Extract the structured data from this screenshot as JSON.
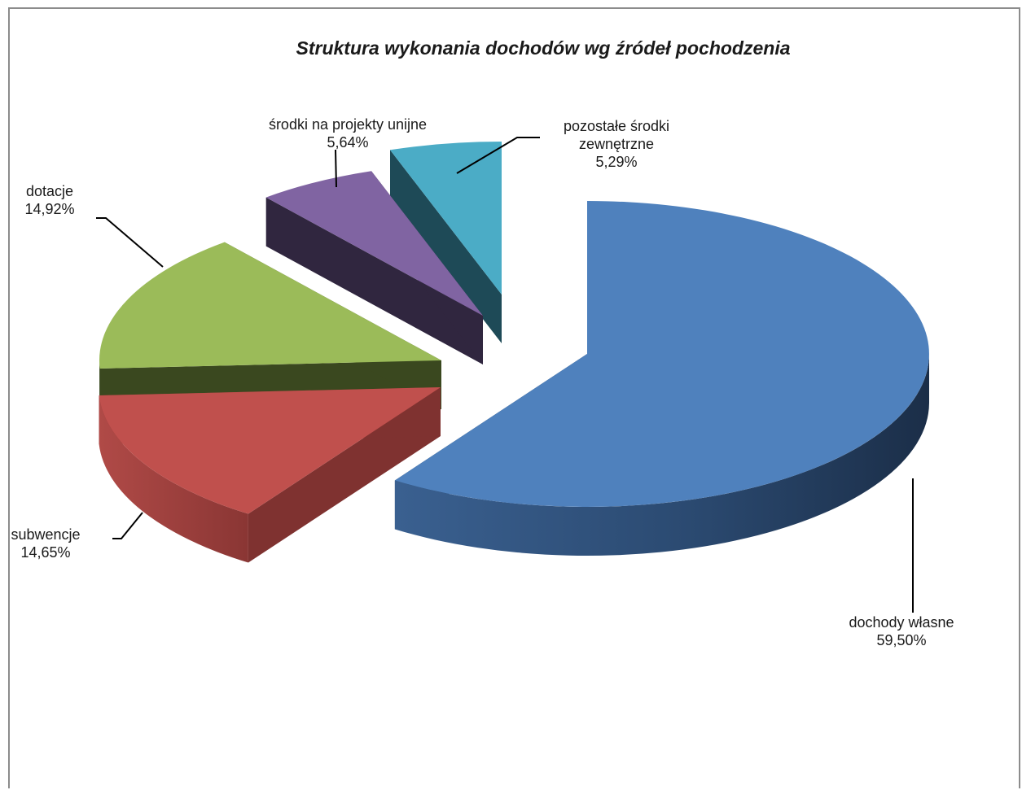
{
  "chart_data": {
    "type": "pie",
    "title": "Struktura wykonania dochodów wg źródeł pochodzenia",
    "categories": [
      "dochody własne",
      "subwencje",
      "dotacje",
      "środki na projekty unijne",
      "pozostałe  środki zewnętrzne"
    ],
    "values": [
      59.5,
      14.65,
      14.92,
      5.64,
      5.29
    ],
    "unit": "%",
    "data_labels": [
      "59,50%",
      "14,65%",
      "14,92%",
      "5,64%",
      "5,29%"
    ],
    "label_lines": [
      [
        "dochody własne"
      ],
      [
        "subwencje"
      ],
      [
        "dotacje"
      ],
      [
        "środki na projekty unijne"
      ],
      [
        "pozostałe  środki",
        "zewnętrzne"
      ]
    ],
    "colors": [
      "#4f81bd",
      "#c0504d",
      "#9bbb59",
      "#8064a2",
      "#4bacc6"
    ],
    "exploded": true,
    "three_d": true,
    "legend": "none"
  }
}
